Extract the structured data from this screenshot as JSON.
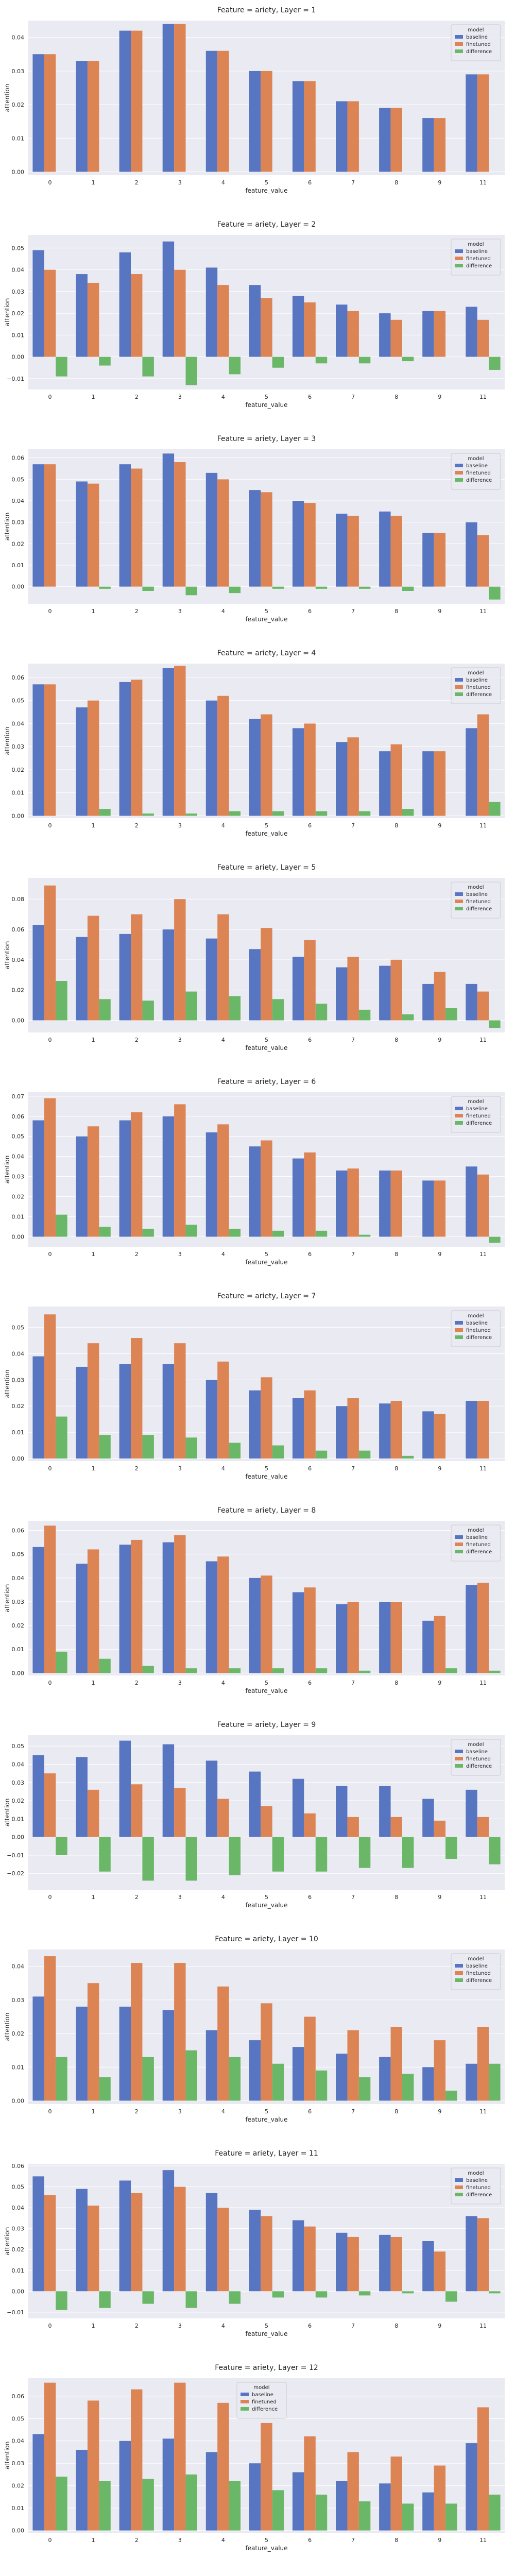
{
  "figure": {
    "legend_title": "model",
    "colors": {
      "baseline": "#5875c1",
      "finetuned": "#dd8454",
      "difference": "#6ab767",
      "plot_bg": "#eaeaf2",
      "grid": "#ffffff",
      "text": "#262626"
    }
  },
  "chart_data": [
    {
      "type": "bar",
      "title": "Feature = ariety, Layer = 1",
      "xlabel": "feature_value",
      "ylabel": "attention",
      "ylim": [
        -0.001,
        0.045
      ],
      "yticks": [
        0.0,
        0.01,
        0.02,
        0.03,
        0.04
      ],
      "yticklabels": [
        "0.00",
        "0.01",
        "0.02",
        "0.03",
        "0.04"
      ],
      "grid": true,
      "legend": "top-right",
      "categories": [
        "0",
        "1",
        "2",
        "3",
        "4",
        "5",
        "6",
        "7",
        "8",
        "9",
        "11"
      ],
      "series": [
        {
          "name": "baseline",
          "values": [
            0.035,
            0.033,
            0.042,
            0.044,
            0.036,
            0.03,
            0.027,
            0.021,
            0.019,
            0.016,
            0.029
          ]
        },
        {
          "name": "finetuned",
          "values": [
            0.035,
            0.033,
            0.042,
            0.044,
            0.036,
            0.03,
            0.027,
            0.021,
            0.019,
            0.016,
            0.029
          ]
        },
        {
          "name": "difference",
          "values": [
            0,
            0,
            0,
            0,
            0,
            0,
            0,
            0,
            0,
            0,
            0
          ]
        }
      ]
    },
    {
      "type": "bar",
      "title": "Feature = ariety, Layer = 2",
      "xlabel": "feature_value",
      "ylabel": "attention",
      "ylim": [
        -0.015,
        0.056
      ],
      "yticks": [
        -0.01,
        0.0,
        0.01,
        0.02,
        0.03,
        0.04,
        0.05
      ],
      "yticklabels": [
        "−0.01",
        "0.00",
        "0.01",
        "0.02",
        "0.03",
        "0.04",
        "0.05"
      ],
      "grid": true,
      "legend": "top-right",
      "categories": [
        "0",
        "1",
        "2",
        "3",
        "4",
        "5",
        "6",
        "7",
        "8",
        "9",
        "11"
      ],
      "series": [
        {
          "name": "baseline",
          "values": [
            0.049,
            0.038,
            0.048,
            0.053,
            0.041,
            0.033,
            0.028,
            0.024,
            0.02,
            0.021,
            0.023
          ]
        },
        {
          "name": "finetuned",
          "values": [
            0.04,
            0.034,
            0.038,
            0.04,
            0.033,
            0.027,
            0.025,
            0.021,
            0.017,
            0.021,
            0.017
          ]
        },
        {
          "name": "difference",
          "values": [
            -0.009,
            -0.004,
            -0.009,
            -0.013,
            -0.008,
            -0.005,
            -0.003,
            -0.003,
            -0.002,
            0.0,
            -0.006
          ]
        }
      ]
    },
    {
      "type": "bar",
      "title": "Feature = ariety, Layer = 3",
      "xlabel": "feature_value",
      "ylabel": "attention",
      "ylim": [
        -0.008,
        0.064
      ],
      "yticks": [
        0.0,
        0.01,
        0.02,
        0.03,
        0.04,
        0.05,
        0.06
      ],
      "yticklabels": [
        "0.00",
        "0.01",
        "0.02",
        "0.03",
        "0.04",
        "0.05",
        "0.06"
      ],
      "grid": true,
      "legend": "top-right",
      "categories": [
        "0",
        "1",
        "2",
        "3",
        "4",
        "5",
        "6",
        "7",
        "8",
        "9",
        "11"
      ],
      "series": [
        {
          "name": "baseline",
          "values": [
            0.057,
            0.049,
            0.057,
            0.062,
            0.053,
            0.045,
            0.04,
            0.034,
            0.035,
            0.025,
            0.03
          ]
        },
        {
          "name": "finetuned",
          "values": [
            0.057,
            0.048,
            0.055,
            0.058,
            0.05,
            0.044,
            0.039,
            0.033,
            0.033,
            0.025,
            0.024
          ]
        },
        {
          "name": "difference",
          "values": [
            0.0,
            -0.001,
            -0.002,
            -0.004,
            -0.003,
            -0.001,
            -0.001,
            -0.001,
            -0.002,
            0.0,
            -0.006
          ]
        }
      ]
    },
    {
      "type": "bar",
      "title": "Feature = ariety, Layer = 4",
      "xlabel": "feature_value",
      "ylabel": "attention",
      "ylim": [
        -0.001,
        0.066
      ],
      "yticks": [
        0.0,
        0.01,
        0.02,
        0.03,
        0.04,
        0.05,
        0.06
      ],
      "yticklabels": [
        "0.00",
        "0.01",
        "0.02",
        "0.03",
        "0.04",
        "0.05",
        "0.06"
      ],
      "grid": true,
      "legend": "top-right",
      "categories": [
        "0",
        "1",
        "2",
        "3",
        "4",
        "5",
        "6",
        "7",
        "8",
        "9",
        "11"
      ],
      "series": [
        {
          "name": "baseline",
          "values": [
            0.057,
            0.047,
            0.058,
            0.064,
            0.05,
            0.042,
            0.038,
            0.032,
            0.028,
            0.028,
            0.038
          ]
        },
        {
          "name": "finetuned",
          "values": [
            0.057,
            0.05,
            0.059,
            0.065,
            0.052,
            0.044,
            0.04,
            0.034,
            0.031,
            0.028,
            0.044
          ]
        },
        {
          "name": "difference",
          "values": [
            0.0,
            0.003,
            0.001,
            0.001,
            0.002,
            0.002,
            0.002,
            0.002,
            0.003,
            0.0,
            0.006
          ]
        }
      ]
    },
    {
      "type": "bar",
      "title": "Feature = ariety, Layer = 5",
      "xlabel": "feature_value",
      "ylabel": "attention",
      "ylim": [
        -0.008,
        0.094
      ],
      "yticks": [
        0.0,
        0.02,
        0.04,
        0.06,
        0.08
      ],
      "yticklabels": [
        "0.00",
        "0.02",
        "0.04",
        "0.06",
        "0.08"
      ],
      "grid": true,
      "legend": "top-right",
      "categories": [
        "0",
        "1",
        "2",
        "3",
        "4",
        "5",
        "6",
        "7",
        "8",
        "9",
        "11"
      ],
      "series": [
        {
          "name": "baseline",
          "values": [
            0.063,
            0.055,
            0.057,
            0.06,
            0.054,
            0.047,
            0.042,
            0.035,
            0.036,
            0.024,
            0.024
          ]
        },
        {
          "name": "finetuned",
          "values": [
            0.089,
            0.069,
            0.07,
            0.08,
            0.07,
            0.061,
            0.053,
            0.042,
            0.04,
            0.032,
            0.019
          ]
        },
        {
          "name": "difference",
          "values": [
            0.026,
            0.014,
            0.013,
            0.019,
            0.016,
            0.014,
            0.011,
            0.007,
            0.004,
            0.008,
            -0.005
          ]
        }
      ]
    },
    {
      "type": "bar",
      "title": "Feature = ariety, Layer = 6",
      "xlabel": "feature_value",
      "ylabel": "attention",
      "ylim": [
        -0.005,
        0.072
      ],
      "yticks": [
        0.0,
        0.01,
        0.02,
        0.03,
        0.04,
        0.05,
        0.06,
        0.07
      ],
      "yticklabels": [
        "0.00",
        "0.01",
        "0.02",
        "0.03",
        "0.04",
        "0.05",
        "0.06",
        "0.07"
      ],
      "grid": true,
      "legend": "top-right",
      "categories": [
        "0",
        "1",
        "2",
        "3",
        "4",
        "5",
        "6",
        "7",
        "8",
        "9",
        "11"
      ],
      "series": [
        {
          "name": "baseline",
          "values": [
            0.058,
            0.05,
            0.058,
            0.06,
            0.052,
            0.045,
            0.039,
            0.033,
            0.033,
            0.028,
            0.035
          ]
        },
        {
          "name": "finetuned",
          "values": [
            0.069,
            0.055,
            0.062,
            0.066,
            0.056,
            0.048,
            0.042,
            0.034,
            0.033,
            0.028,
            0.031
          ]
        },
        {
          "name": "difference",
          "values": [
            0.011,
            0.005,
            0.004,
            0.006,
            0.004,
            0.003,
            0.003,
            0.001,
            0.0,
            0.0,
            -0.003
          ]
        }
      ]
    },
    {
      "type": "bar",
      "title": "Feature = ariety, Layer = 7",
      "xlabel": "feature_value",
      "ylabel": "attention",
      "ylim": [
        -0.001,
        0.058
      ],
      "yticks": [
        0.0,
        0.01,
        0.02,
        0.03,
        0.04,
        0.05
      ],
      "yticklabels": [
        "0.00",
        "0.01",
        "0.02",
        "0.03",
        "0.04",
        "0.05"
      ],
      "grid": true,
      "legend": "top-right",
      "categories": [
        "0",
        "1",
        "2",
        "3",
        "4",
        "5",
        "6",
        "7",
        "8",
        "9",
        "11"
      ],
      "series": [
        {
          "name": "baseline",
          "values": [
            0.039,
            0.035,
            0.036,
            0.036,
            0.03,
            0.026,
            0.023,
            0.02,
            0.021,
            0.018,
            0.022
          ]
        },
        {
          "name": "finetuned",
          "values": [
            0.055,
            0.044,
            0.046,
            0.044,
            0.037,
            0.031,
            0.026,
            0.023,
            0.022,
            0.017,
            0.022
          ]
        },
        {
          "name": "difference",
          "values": [
            0.016,
            0.009,
            0.009,
            0.008,
            0.006,
            0.005,
            0.003,
            0.003,
            0.001,
            0.0,
            0.0
          ]
        }
      ]
    },
    {
      "type": "bar",
      "title": "Feature = ariety, Layer = 8",
      "xlabel": "feature_value",
      "ylabel": "attention",
      "ylim": [
        -0.001,
        0.064
      ],
      "yticks": [
        0.0,
        0.01,
        0.02,
        0.03,
        0.04,
        0.05,
        0.06
      ],
      "yticklabels": [
        "0.00",
        "0.01",
        "0.02",
        "0.03",
        "0.04",
        "0.05",
        "0.06"
      ],
      "grid": true,
      "legend": "top-right",
      "categories": [
        "0",
        "1",
        "2",
        "3",
        "4",
        "5",
        "6",
        "7",
        "8",
        "9",
        "11"
      ],
      "series": [
        {
          "name": "baseline",
          "values": [
            0.053,
            0.046,
            0.054,
            0.055,
            0.047,
            0.04,
            0.034,
            0.029,
            0.03,
            0.022,
            0.037
          ]
        },
        {
          "name": "finetuned",
          "values": [
            0.062,
            0.052,
            0.056,
            0.058,
            0.049,
            0.041,
            0.036,
            0.03,
            0.03,
            0.024,
            0.038
          ]
        },
        {
          "name": "difference",
          "values": [
            0.009,
            0.006,
            0.003,
            0.002,
            0.002,
            0.002,
            0.002,
            0.001,
            0.0,
            0.002,
            0.001
          ]
        }
      ]
    },
    {
      "type": "bar",
      "title": "Feature = ariety, Layer = 9",
      "xlabel": "feature_value",
      "ylabel": "attention",
      "ylim": [
        -0.029,
        0.056
      ],
      "yticks": [
        -0.02,
        -0.01,
        0.0,
        0.01,
        0.02,
        0.03,
        0.04,
        0.05
      ],
      "yticklabels": [
        "−0.02",
        "−0.01",
        "0.00",
        "0.01",
        "0.02",
        "0.03",
        "0.04",
        "0.05"
      ],
      "grid": true,
      "legend": "top-right",
      "categories": [
        "0",
        "1",
        "2",
        "3",
        "4",
        "5",
        "6",
        "7",
        "8",
        "9",
        "11"
      ],
      "series": [
        {
          "name": "baseline",
          "values": [
            0.045,
            0.044,
            0.053,
            0.051,
            0.042,
            0.036,
            0.032,
            0.028,
            0.028,
            0.021,
            0.026
          ]
        },
        {
          "name": "finetuned",
          "values": [
            0.035,
            0.026,
            0.029,
            0.027,
            0.021,
            0.017,
            0.013,
            0.011,
            0.011,
            0.009,
            0.011
          ]
        },
        {
          "name": "difference",
          "values": [
            -0.01,
            -0.019,
            -0.024,
            -0.024,
            -0.021,
            -0.019,
            -0.019,
            -0.017,
            -0.017,
            -0.012,
            -0.015
          ]
        }
      ]
    },
    {
      "type": "bar",
      "title": "Feature = ariety, Layer = 10",
      "xlabel": "feature_value",
      "ylabel": "attention",
      "ylim": [
        -0.001,
        0.045
      ],
      "yticks": [
        0.0,
        0.01,
        0.02,
        0.03,
        0.04
      ],
      "yticklabels": [
        "0.00",
        "0.01",
        "0.02",
        "0.03",
        "0.04"
      ],
      "grid": true,
      "legend": "top-right",
      "categories": [
        "0",
        "1",
        "2",
        "3",
        "4",
        "5",
        "6",
        "7",
        "8",
        "9",
        "11"
      ],
      "series": [
        {
          "name": "baseline",
          "values": [
            0.031,
            0.028,
            0.028,
            0.027,
            0.021,
            0.018,
            0.016,
            0.014,
            0.013,
            0.01,
            0.011
          ]
        },
        {
          "name": "finetuned",
          "values": [
            0.043,
            0.035,
            0.041,
            0.041,
            0.034,
            0.029,
            0.025,
            0.021,
            0.022,
            0.018,
            0.022
          ]
        },
        {
          "name": "difference",
          "values": [
            0.013,
            0.007,
            0.013,
            0.015,
            0.013,
            0.011,
            0.009,
            0.007,
            0.008,
            0.003,
            0.011
          ]
        }
      ]
    },
    {
      "type": "bar",
      "title": "Feature = ariety, Layer = 11",
      "xlabel": "feature_value",
      "ylabel": "attention",
      "ylim": [
        -0.013,
        0.061
      ],
      "yticks": [
        -0.01,
        0.0,
        0.01,
        0.02,
        0.03,
        0.04,
        0.05,
        0.06
      ],
      "yticklabels": [
        "−0.01",
        "0.00",
        "0.01",
        "0.02",
        "0.03",
        "0.04",
        "0.05",
        "0.06"
      ],
      "grid": true,
      "legend": "top-right",
      "categories": [
        "0",
        "1",
        "2",
        "3",
        "4",
        "5",
        "6",
        "7",
        "8",
        "9",
        "11"
      ],
      "series": [
        {
          "name": "baseline",
          "values": [
            0.055,
            0.049,
            0.053,
            0.058,
            0.047,
            0.039,
            0.034,
            0.028,
            0.027,
            0.024,
            0.036
          ]
        },
        {
          "name": "finetuned",
          "values": [
            0.046,
            0.041,
            0.047,
            0.05,
            0.04,
            0.036,
            0.031,
            0.026,
            0.026,
            0.019,
            0.035
          ]
        },
        {
          "name": "difference",
          "values": [
            -0.009,
            -0.008,
            -0.006,
            -0.008,
            -0.006,
            -0.003,
            -0.003,
            -0.002,
            -0.001,
            -0.005,
            -0.001
          ]
        }
      ]
    },
    {
      "type": "bar",
      "title": "Feature = ariety, Layer = 12",
      "xlabel": "feature_value",
      "ylabel": "attention",
      "ylim": [
        -0.001,
        0.068
      ],
      "yticks": [
        0.0,
        0.01,
        0.02,
        0.03,
        0.04,
        0.05,
        0.06
      ],
      "yticklabels": [
        "0.00",
        "0.01",
        "0.02",
        "0.03",
        "0.04",
        "0.05",
        "0.06"
      ],
      "grid": true,
      "legend": "top-center",
      "categories": [
        "0",
        "1",
        "2",
        "3",
        "4",
        "5",
        "6",
        "7",
        "8",
        "9",
        "11"
      ],
      "series": [
        {
          "name": "baseline",
          "values": [
            0.043,
            0.036,
            0.04,
            0.041,
            0.035,
            0.03,
            0.026,
            0.022,
            0.021,
            0.017,
            0.039
          ]
        },
        {
          "name": "finetuned",
          "values": [
            0.066,
            0.058,
            0.063,
            0.066,
            0.057,
            0.048,
            0.042,
            0.035,
            0.033,
            0.029,
            0.055
          ]
        },
        {
          "name": "difference",
          "values": [
            0.024,
            0.022,
            0.023,
            0.025,
            0.022,
            0.018,
            0.016,
            0.013,
            0.012,
            0.012,
            0.016
          ]
        }
      ]
    }
  ]
}
